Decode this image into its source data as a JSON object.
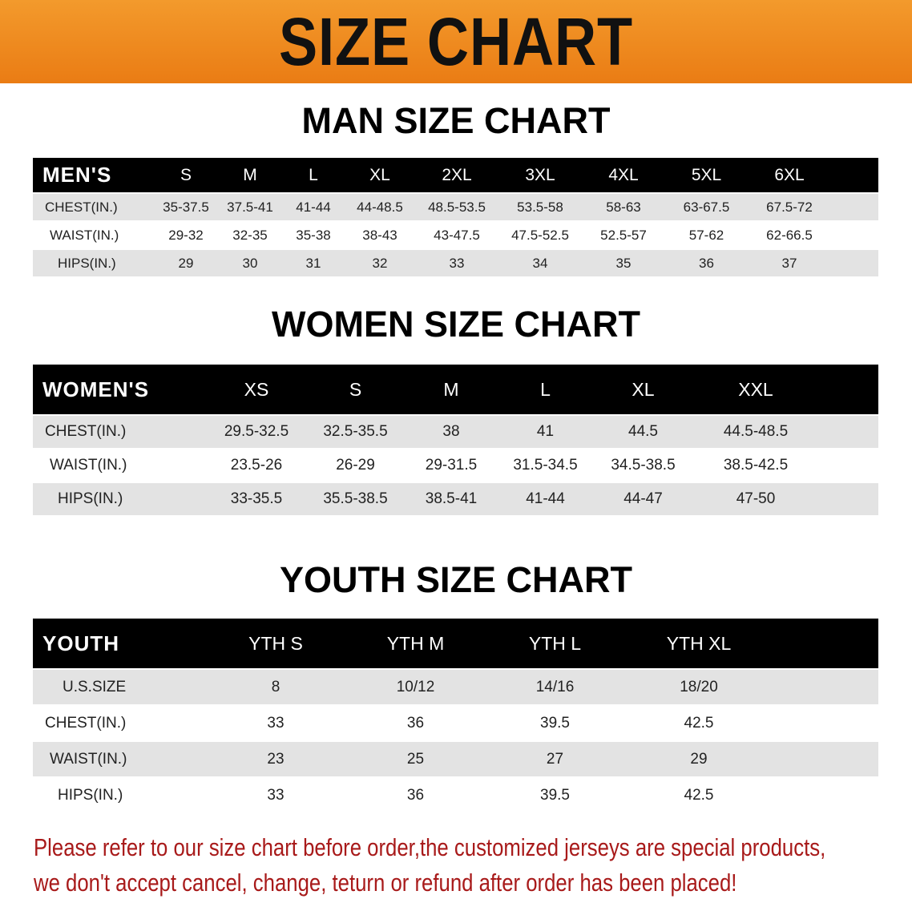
{
  "banner_title": "SIZE CHART",
  "accent_color": "#ea7c14",
  "note_color": "#a81a1a",
  "men": {
    "title": "MAN SIZE CHART",
    "header": [
      "MEN'S",
      "S",
      "M",
      "L",
      "XL",
      "2XL",
      "3XL",
      "4XL",
      "5XL",
      "6XL"
    ],
    "rows": [
      [
        "CHEST(IN.)",
        "35-37.5",
        "37.5-41",
        "41-44",
        "44-48.5",
        "48.5-53.5",
        "53.5-58",
        "58-63",
        "63-67.5",
        "67.5-72"
      ],
      [
        "WAIST(IN.)",
        "29-32",
        "32-35",
        "35-38",
        "38-43",
        "43-47.5",
        "47.5-52.5",
        "52.5-57",
        "57-62",
        "62-66.5"
      ],
      [
        "HIPS(IN.)",
        "29",
        "30",
        "31",
        "32",
        "33",
        "34",
        "35",
        "36",
        "37"
      ]
    ]
  },
  "women": {
    "title": "WOMEN SIZE CHART",
    "header": [
      "WOMEN'S",
      "XS",
      "S",
      "M",
      "L",
      "XL",
      "XXL"
    ],
    "rows": [
      [
        "CHEST(IN.)",
        "29.5-32.5",
        "32.5-35.5",
        "38",
        "41",
        "44.5",
        "44.5-48.5"
      ],
      [
        "WAIST(IN.)",
        "23.5-26",
        "26-29",
        "29-31.5",
        "31.5-34.5",
        "34.5-38.5",
        "38.5-42.5"
      ],
      [
        "HIPS(IN.)",
        "33-35.5",
        "35.5-38.5",
        "38.5-41",
        "41-44",
        "44-47",
        "47-50"
      ]
    ]
  },
  "youth": {
    "title": "YOUTH SIZE CHART",
    "header": [
      "YOUTH",
      "YTH S",
      "YTH M",
      "YTH L",
      "YTH XL"
    ],
    "rows": [
      [
        "U.S.SIZE",
        "8",
        "10/12",
        "14/16",
        "18/20"
      ],
      [
        "CHEST(IN.)",
        "33",
        "36",
        "39.5",
        "42.5"
      ],
      [
        "WAIST(IN.)",
        "23",
        "25",
        "27",
        "29"
      ],
      [
        "HIPS(IN.)",
        "33",
        "36",
        "39.5",
        "42.5"
      ]
    ]
  },
  "note": [
    "Please refer to our size chart before order,the customized jerseys are special products,",
    "we don't accept cancel, change, teturn or refund after order has been placed!"
  ]
}
